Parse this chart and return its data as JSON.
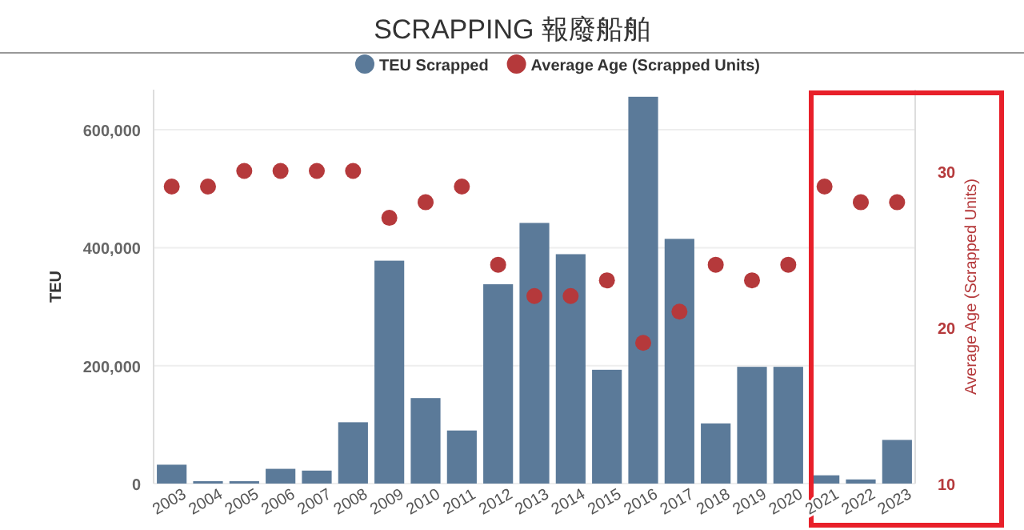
{
  "chart_data": {
    "type": "bar",
    "title": "SCRAPPING 報廢船舶",
    "ylabel": "TEU",
    "y2label": "Average Age (Scrapped Units)",
    "categories": [
      "2003",
      "2004",
      "2005",
      "2006",
      "2007",
      "2008",
      "2009",
      "2010",
      "2011",
      "2012",
      "2013",
      "2014",
      "2015",
      "2016",
      "2017",
      "2018",
      "2019",
      "2020",
      "2021",
      "2022",
      "2023"
    ],
    "series": [
      {
        "name": "TEU Scrapped",
        "color": "#5b7a99",
        "values": [
          32000,
          4000,
          4000,
          25000,
          22000,
          104000,
          378000,
          145000,
          90000,
          338000,
          442000,
          389000,
          193000,
          656000,
          415000,
          102000,
          198000,
          198000,
          14000,
          7000,
          74000
        ]
      },
      {
        "name": "Average Age (Scrapped Units)",
        "type": "scatter",
        "axis": "y2",
        "color": "#b5393b",
        "values": [
          29,
          29,
          30,
          30,
          30,
          30,
          27,
          28,
          29,
          24,
          22,
          22,
          23,
          19,
          21,
          24,
          23,
          24,
          29,
          28,
          28
        ]
      }
    ],
    "ylim": [
      0,
      668000
    ],
    "yticks": [
      {
        "value": 0,
        "label": "0"
      },
      {
        "value": 200000,
        "label": "200,000"
      },
      {
        "value": 400000,
        "label": "400,000"
      },
      {
        "value": 600000,
        "label": "600,000"
      }
    ],
    "y2lim": [
      10,
      35.2
    ],
    "y2ticks": [
      10,
      20,
      30
    ],
    "grid": "y",
    "legend": "top",
    "marker": "circle"
  }
}
